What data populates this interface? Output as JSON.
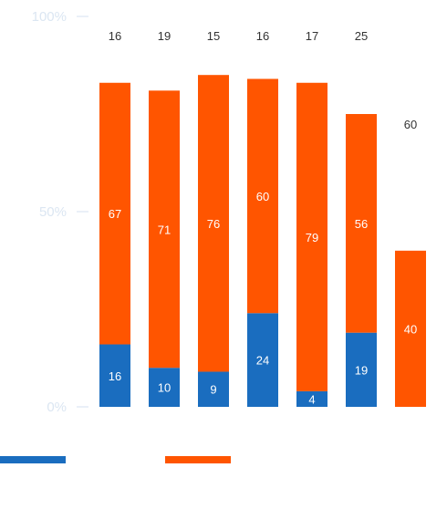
{
  "chart_data": {
    "type": "bar",
    "stacked": true,
    "orientation": "vertical",
    "categories": [
      "",
      "",
      "",
      "",
      "",
      "",
      ""
    ],
    "ylim": [
      0,
      100
    ],
    "yticks": [
      0,
      50,
      100
    ],
    "ytick_labels": [
      "0%",
      "50%",
      "100%"
    ],
    "top_labels": [
      "16",
      "19",
      "15",
      "16",
      "17",
      "25",
      "60"
    ],
    "series": [
      {
        "color": "#1a6dbf",
        "values": [
          16,
          10,
          9,
          24,
          4,
          19,
          0
        ]
      },
      {
        "color": "#ff5500",
        "values": [
          67,
          71,
          76,
          60,
          79,
          56,
          40
        ]
      }
    ],
    "legend": {
      "position": "bottom-left",
      "colors": [
        "#1a6dbf",
        "#ff5500"
      ]
    },
    "grid": false
  }
}
